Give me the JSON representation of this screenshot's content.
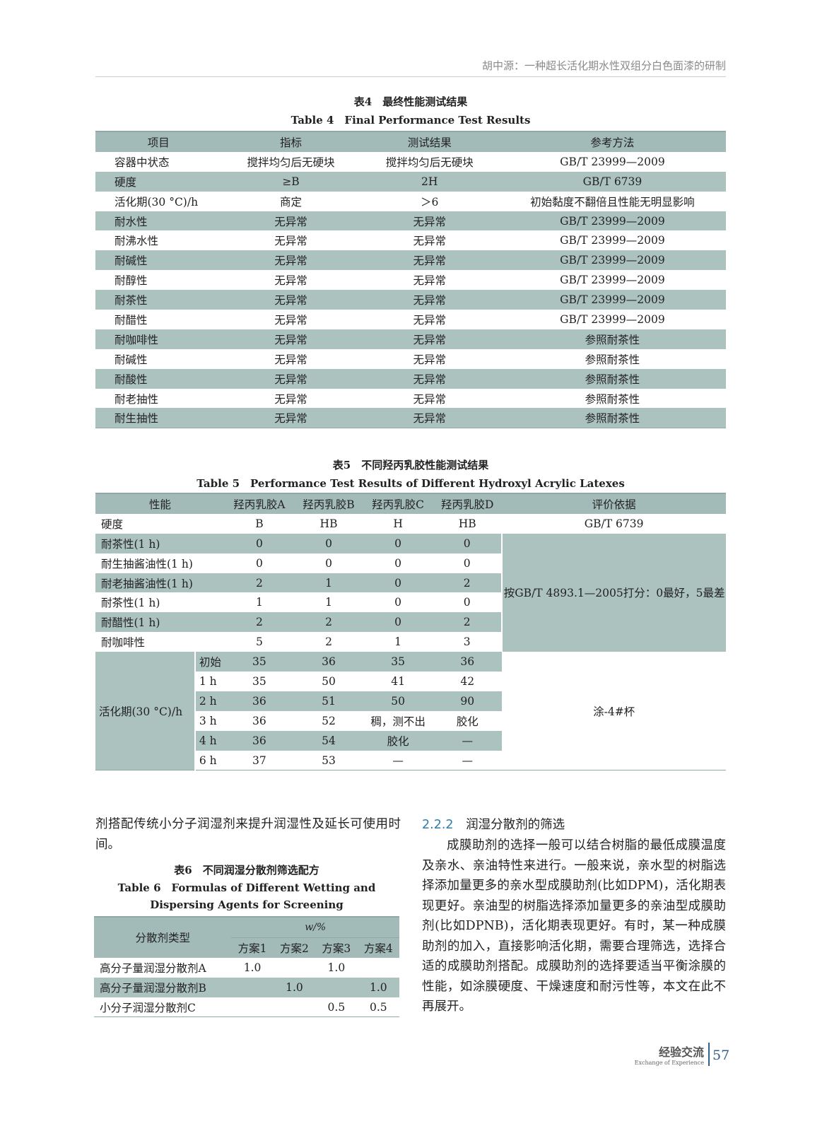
{
  "running_head": "胡中源：一种超长活化期水性双组分白色面漆的研制",
  "table4": {
    "caption_cn": "表4　最终性能测试结果",
    "caption_en": "Table 4　Final Performance Test Results",
    "headers": [
      "项目",
      "指标",
      "测试结果",
      "参考方法"
    ],
    "rows": [
      [
        "容器中状态",
        "搅拌均匀后无硬块",
        "搅拌均匀后无硬块",
        "GB/T 23999—2009"
      ],
      [
        "硬度",
        "≥B",
        "2H",
        "GB/T 6739"
      ],
      [
        "活化期(30 °C)/h",
        "商定",
        "＞6",
        "初始黏度不翻倍且性能无明显影响"
      ],
      [
        "耐水性",
        "无异常",
        "无异常",
        "GB/T 23999—2009"
      ],
      [
        "耐沸水性",
        "无异常",
        "无异常",
        "GB/T 23999—2009"
      ],
      [
        "耐碱性",
        "无异常",
        "无异常",
        "GB/T 23999—2009"
      ],
      [
        "耐醇性",
        "无异常",
        "无异常",
        "GB/T 23999—2009"
      ],
      [
        "耐茶性",
        "无异常",
        "无异常",
        "GB/T 23999—2009"
      ],
      [
        "耐醋性",
        "无异常",
        "无异常",
        "GB/T 23999—2009"
      ],
      [
        "耐咖啡性",
        "无异常",
        "无异常",
        "参照耐茶性"
      ],
      [
        "耐碱性",
        "无异常",
        "无异常",
        "参照耐茶性"
      ],
      [
        "耐酸性",
        "无异常",
        "无异常",
        "参照耐茶性"
      ],
      [
        "耐老抽性",
        "无异常",
        "无异常",
        "参照耐茶性"
      ],
      [
        "耐生抽性",
        "无异常",
        "无异常",
        "参照耐茶性"
      ]
    ]
  },
  "table5": {
    "caption_cn": "表5　不同羟丙乳胶性能测试结果",
    "caption_en": "Table 5　Performance Test Results of Different Hydroxyl Acrylic Latexes",
    "headers": [
      "性能",
      "羟丙乳胶A",
      "羟丙乳胶B",
      "羟丙乳胶C",
      "羟丙乳胶D",
      "评价依据"
    ],
    "hardness": {
      "label": "硬度",
      "values": [
        "B",
        "HB",
        "H",
        "HB"
      ],
      "basis": "GB/T 6739"
    },
    "resistance_rows": [
      {
        "label": "耐茶性(1 h)",
        "values": [
          "0",
          "0",
          "0",
          "0"
        ]
      },
      {
        "label": "耐生抽酱油性(1 h)",
        "values": [
          "0",
          "0",
          "0",
          "0"
        ]
      },
      {
        "label": "耐老抽酱油性(1 h)",
        "values": [
          "2",
          "1",
          "0",
          "2"
        ]
      },
      {
        "label": "耐茶性(1 h)",
        "values": [
          "1",
          "1",
          "0",
          "0"
        ]
      },
      {
        "label": "耐醋性(1 h)",
        "values": [
          "2",
          "2",
          "0",
          "2"
        ]
      },
      {
        "label": "耐咖啡性",
        "values": [
          "5",
          "2",
          "1",
          "3"
        ]
      }
    ],
    "resistance_basis": "按GB/T 4893.1—2005打分：0最好，5最差",
    "pot_life_label": "活化期(30 °C)/h",
    "pot_life_rows": [
      {
        "time": "初始",
        "values": [
          "35",
          "36",
          "35",
          "36"
        ]
      },
      {
        "time": "1 h",
        "values": [
          "35",
          "50",
          "41",
          "42"
        ]
      },
      {
        "time": "2 h",
        "values": [
          "36",
          "51",
          "50",
          "90"
        ]
      },
      {
        "time": "3 h",
        "values": [
          "36",
          "52",
          "稠，测不出",
          "胶化"
        ]
      },
      {
        "time": "4 h",
        "values": [
          "36",
          "54",
          "胶化",
          "—"
        ]
      },
      {
        "time": "6 h",
        "values": [
          "37",
          "53",
          "—",
          "—"
        ]
      }
    ],
    "pot_life_basis": "涂-4#杯"
  },
  "left_text": "剂搭配传统小分子润湿剂来提升润湿性及延长可使用时间。",
  "table6": {
    "caption_cn": "表6　不同润湿分散剂筛选配方",
    "caption_en": "Table 6　Formulas of Different Wetting and Dispersing Agents for Screening",
    "header_type": "分散剂类型",
    "header_unit": "w/%",
    "schemes": [
      "方案1",
      "方案2",
      "方案3",
      "方案4"
    ],
    "rows": [
      {
        "label": "高分子量润湿分散剂A",
        "values": [
          "1.0",
          "",
          "1.0",
          ""
        ]
      },
      {
        "label": "高分子量润湿分散剂B",
        "values": [
          "",
          "1.0",
          "",
          "1.0"
        ]
      },
      {
        "label": "小分子润湿分散剂C",
        "values": [
          "",
          "",
          "0.5",
          "0.5"
        ]
      }
    ]
  },
  "section": {
    "number": "2.2.2",
    "title": "润湿分散剂的筛选",
    "text": "成膜助剂的选择一般可以结合树脂的最低成膜温度及亲水、亲油特性来进行。一般来说，亲水型的树脂选择添加量更多的亲水型成膜助剂(比如DPM)，活化期表现更好。亲油型的树脂选择添加量更多的亲油型成膜助剂(比如DPNB)，活化期表现更好。有时，某一种成膜助剂的加入，直接影响活化期，需要合理筛选，选择合适的成膜助剂搭配。成膜助剂的选择要适当平衡涂膜的性能，如涂膜硬度、干燥速度和耐污性等，本文在此不再展开。"
  },
  "footer": {
    "column_cn": "经验交流",
    "column_en": "Exchange of Experience",
    "page_number": "57"
  },
  "colors": {
    "table_band": "#abc2bf",
    "header_band": "#a2bbb8",
    "section_number": "#2f7fa8"
  }
}
